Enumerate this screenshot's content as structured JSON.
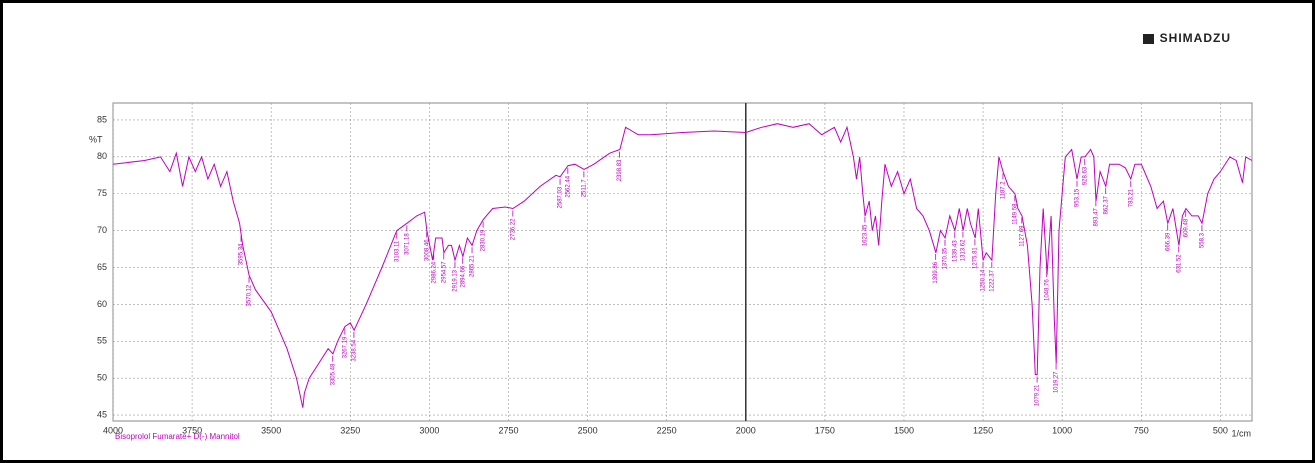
{
  "logo": "SHIMADZU",
  "chart_data": {
    "type": "line",
    "x_label": "1/cm",
    "y_label": "%T",
    "xlim": [
      4000,
      400
    ],
    "ylim": [
      44.2,
      87.3
    ],
    "xticks": [
      4000,
      3750,
      3500,
      3250,
      3000,
      2750,
      2500,
      2250,
      2000,
      1750,
      1500,
      1250,
      1000,
      750,
      500
    ],
    "yticks": [
      45,
      50,
      55,
      60,
      65,
      70,
      75,
      80,
      85
    ],
    "grid": true,
    "divider": 2000,
    "series": [
      {
        "name": "Bisoprolol Fumarate+ D(-) Mannitol",
        "color": "#c000c0",
        "x": [
          4000,
          3900,
          3850,
          3820,
          3800,
          3780,
          3760,
          3740,
          3720,
          3700,
          3680,
          3660,
          3640,
          3620,
          3600,
          3590,
          3580,
          3570,
          3550,
          3500,
          3450,
          3420,
          3400,
          3395,
          3380,
          3350,
          3320,
          3305,
          3290,
          3267,
          3250,
          3238,
          3200,
          3150,
          3103,
          3071,
          3040,
          3015,
          3008,
          2990,
          2980,
          2960,
          2954,
          2940,
          2930,
          2919,
          2905,
          2894,
          2880,
          2865,
          2850,
          2830,
          2800,
          2760,
          2736,
          2700,
          2650,
          2600,
          2587,
          2562,
          2540,
          2511,
          2480,
          2430,
          2398,
          2380,
          2360,
          2340,
          2300,
          2200,
          2100,
          2000,
          1950,
          1900,
          1850,
          1800,
          1760,
          1720,
          1700,
          1680,
          1660,
          1650,
          1640,
          1630,
          1623,
          1610,
          1600,
          1590,
          1580,
          1570,
          1560,
          1540,
          1520,
          1500,
          1480,
          1460,
          1440,
          1420,
          1399,
          1385,
          1370,
          1355,
          1339,
          1325,
          1313,
          1300,
          1290,
          1275,
          1265,
          1250,
          1240,
          1222,
          1210,
          1200,
          1187,
          1170,
          1149,
          1140,
          1127,
          1110,
          1095,
          1085,
          1079,
          1070,
          1060,
          1050,
          1048,
          1035,
          1025,
          1019,
          1010,
          990,
          970,
          953,
          940,
          928,
          910,
          900,
          893,
          880,
          862,
          850,
          820,
          800,
          783,
          770,
          750,
          720,
          700,
          680,
          666,
          650,
          631,
          620,
          609,
          590,
          570,
          558,
          540,
          520,
          500,
          470,
          450,
          430,
          420,
          400
        ],
        "values": [
          79,
          79.5,
          80,
          78,
          80.5,
          76,
          80,
          78,
          80,
          77,
          79,
          76,
          78,
          74,
          71,
          68,
          66,
          64,
          62,
          59,
          54,
          50,
          46,
          48,
          50,
          52,
          54,
          53.3,
          55,
          57,
          57.5,
          56.5,
          60,
          65,
          70,
          71,
          72,
          72.5,
          70,
          66,
          69,
          69,
          67,
          68,
          68,
          66,
          68,
          66.5,
          69,
          68,
          70,
          71.5,
          73,
          73.2,
          73,
          74,
          76,
          77.5,
          77.3,
          78.8,
          79,
          78.3,
          79,
          80.5,
          81,
          84,
          83.5,
          83,
          83,
          83.3,
          83.5,
          83.3,
          84,
          84.5,
          84,
          84.5,
          83,
          84,
          82,
          84,
          80,
          77,
          80,
          75,
          72,
          74,
          70,
          72,
          68,
          74,
          79,
          76,
          78,
          75,
          77,
          73,
          72,
          70,
          67,
          70,
          69,
          72,
          70,
          73,
          70,
          73,
          71,
          69,
          73,
          66,
          67,
          66,
          75,
          80,
          78,
          76,
          75,
          73,
          72,
          68,
          60,
          50.5,
          50.5,
          65,
          73,
          66,
          64,
          72,
          58,
          52,
          70,
          80,
          81,
          77,
          80,
          80,
          81,
          80,
          74,
          78,
          76,
          79,
          79,
          78.5,
          77,
          79,
          79,
          76,
          73,
          74,
          71,
          73,
          68,
          72,
          73,
          72,
          72,
          71,
          75,
          77,
          78,
          80,
          79.5,
          76.5,
          80,
          79.5
        ]
      }
    ],
    "peaks": [
      3595.34,
      3570.12,
      3305.48,
      3267.19,
      3238.54,
      3103.11,
      3071.18,
      3008.46,
      2986.24,
      2954.57,
      2919.13,
      2894.66,
      2865.21,
      2830.19,
      2736.22,
      2587.03,
      2562.44,
      2511.7,
      2398.83,
      1623.45,
      1399.86,
      1370.35,
      1339.43,
      1313.62,
      1275.81,
      1250.14,
      1222.37,
      1187.2,
      1149.58,
      1127.69,
      1079.21,
      1048.76,
      1019.27,
      953.15,
      928.63,
      893.47,
      862.37,
      783.21,
      666.39,
      631.52,
      609.48,
      558.3
    ]
  }
}
